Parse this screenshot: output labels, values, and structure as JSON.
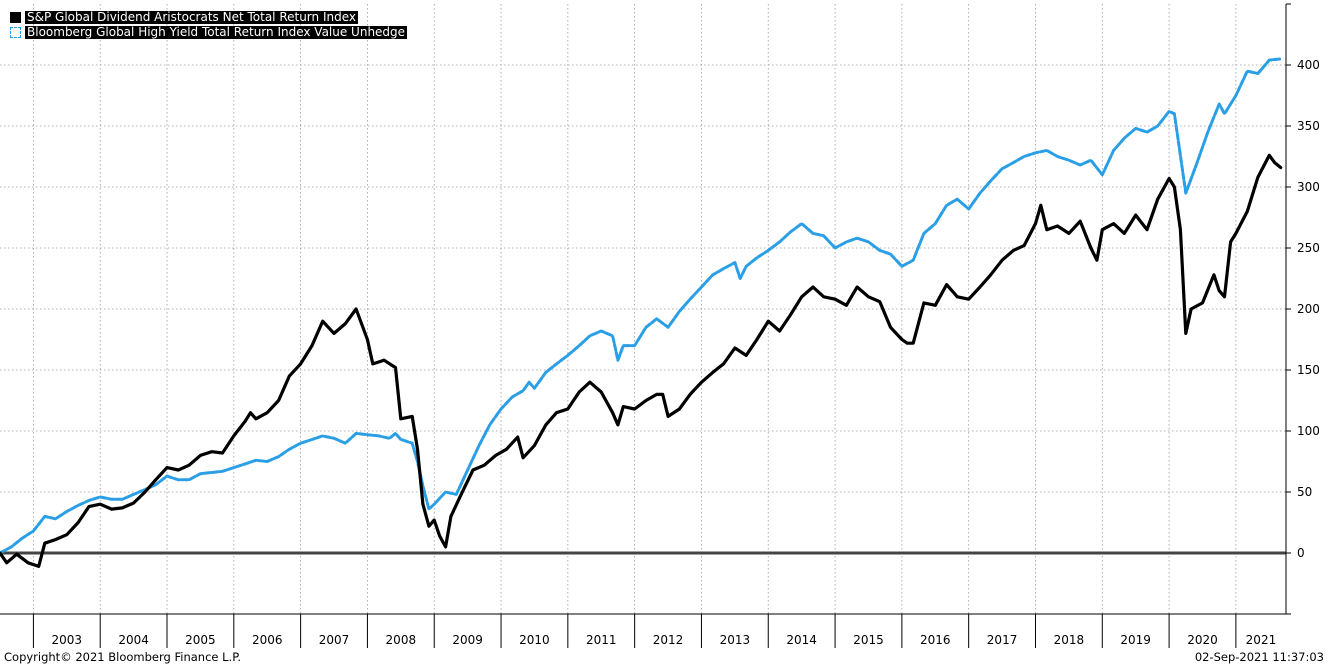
{
  "chart_data": {
    "type": "line",
    "title": "",
    "xlabel": "",
    "ylabel": "",
    "ylim": [
      -50,
      450
    ],
    "yticks": [
      0,
      50,
      100,
      150,
      200,
      250,
      300,
      350,
      400
    ],
    "xlim": [
      2002.5,
      2021.75
    ],
    "years": [
      "2003",
      "2004",
      "2005",
      "2006",
      "2007",
      "2008",
      "2009",
      "2010",
      "2011",
      "2012",
      "2013",
      "2014",
      "2015",
      "2016",
      "2017",
      "2018",
      "2019",
      "2020",
      "2021"
    ],
    "grid": true,
    "legend_position": "top-left",
    "zero_line": true,
    "series": [
      {
        "name": "S&P Global Dividend Aristocrats Net Total Return Index",
        "color": "#000000",
        "style": "solid",
        "points": [
          [
            2002.5,
            0
          ],
          [
            2002.6,
            -8
          ],
          [
            2002.75,
            -1
          ],
          [
            2002.92,
            -8
          ],
          [
            2003.08,
            -11
          ],
          [
            2003.17,
            8
          ],
          [
            2003.33,
            11
          ],
          [
            2003.5,
            15
          ],
          [
            2003.67,
            25
          ],
          [
            2003.83,
            38
          ],
          [
            2004.0,
            40
          ],
          [
            2004.17,
            36
          ],
          [
            2004.33,
            37
          ],
          [
            2004.5,
            41
          ],
          [
            2004.67,
            50
          ],
          [
            2004.83,
            60
          ],
          [
            2005.0,
            70
          ],
          [
            2005.17,
            68
          ],
          [
            2005.33,
            72
          ],
          [
            2005.5,
            80
          ],
          [
            2005.67,
            83
          ],
          [
            2005.83,
            82
          ],
          [
            2006.0,
            96
          ],
          [
            2006.17,
            108
          ],
          [
            2006.25,
            115
          ],
          [
            2006.33,
            110
          ],
          [
            2006.5,
            115
          ],
          [
            2006.67,
            125
          ],
          [
            2006.83,
            145
          ],
          [
            2007.0,
            155
          ],
          [
            2007.17,
            170
          ],
          [
            2007.33,
            190
          ],
          [
            2007.5,
            180
          ],
          [
            2007.67,
            188
          ],
          [
            2007.83,
            200
          ],
          [
            2008.0,
            175
          ],
          [
            2008.08,
            155
          ],
          [
            2008.25,
            158
          ],
          [
            2008.42,
            152
          ],
          [
            2008.5,
            110
          ],
          [
            2008.67,
            112
          ],
          [
            2008.75,
            85
          ],
          [
            2008.83,
            40
          ],
          [
            2008.92,
            22
          ],
          [
            2009.0,
            27
          ],
          [
            2009.08,
            14
          ],
          [
            2009.17,
            5
          ],
          [
            2009.25,
            30
          ],
          [
            2009.42,
            50
          ],
          [
            2009.58,
            68
          ],
          [
            2009.75,
            72
          ],
          [
            2009.92,
            80
          ],
          [
            2010.08,
            85
          ],
          [
            2010.25,
            95
          ],
          [
            2010.33,
            78
          ],
          [
            2010.5,
            88
          ],
          [
            2010.67,
            105
          ],
          [
            2010.83,
            115
          ],
          [
            2011.0,
            118
          ],
          [
            2011.17,
            132
          ],
          [
            2011.33,
            140
          ],
          [
            2011.5,
            132
          ],
          [
            2011.67,
            115
          ],
          [
            2011.75,
            105
          ],
          [
            2011.83,
            120
          ],
          [
            2012.0,
            118
          ],
          [
            2012.17,
            125
          ],
          [
            2012.33,
            130
          ],
          [
            2012.42,
            130
          ],
          [
            2012.5,
            112
          ],
          [
            2012.67,
            118
          ],
          [
            2012.83,
            130
          ],
          [
            2013.0,
            140
          ],
          [
            2013.17,
            148
          ],
          [
            2013.33,
            155
          ],
          [
            2013.5,
            168
          ],
          [
            2013.67,
            162
          ],
          [
            2013.83,
            175
          ],
          [
            2014.0,
            190
          ],
          [
            2014.17,
            182
          ],
          [
            2014.33,
            195
          ],
          [
            2014.5,
            210
          ],
          [
            2014.67,
            218
          ],
          [
            2014.83,
            210
          ],
          [
            2015.0,
            208
          ],
          [
            2015.17,
            203
          ],
          [
            2015.33,
            218
          ],
          [
            2015.5,
            210
          ],
          [
            2015.67,
            206
          ],
          [
            2015.83,
            185
          ],
          [
            2016.0,
            175
          ],
          [
            2016.08,
            172
          ],
          [
            2016.17,
            172
          ],
          [
            2016.33,
            205
          ],
          [
            2016.5,
            203
          ],
          [
            2016.67,
            220
          ],
          [
            2016.83,
            210
          ],
          [
            2017.0,
            208
          ],
          [
            2017.17,
            218
          ],
          [
            2017.33,
            228
          ],
          [
            2017.5,
            240
          ],
          [
            2017.67,
            248
          ],
          [
            2017.83,
            252
          ],
          [
            2018.0,
            270
          ],
          [
            2018.08,
            285
          ],
          [
            2018.17,
            265
          ],
          [
            2018.33,
            268
          ],
          [
            2018.5,
            262
          ],
          [
            2018.67,
            272
          ],
          [
            2018.83,
            250
          ],
          [
            2018.92,
            240
          ],
          [
            2019.0,
            265
          ],
          [
            2019.17,
            270
          ],
          [
            2019.33,
            262
          ],
          [
            2019.5,
            277
          ],
          [
            2019.67,
            265
          ],
          [
            2019.83,
            290
          ],
          [
            2020.0,
            307
          ],
          [
            2020.08,
            300
          ],
          [
            2020.17,
            265
          ],
          [
            2020.25,
            180
          ],
          [
            2020.33,
            200
          ],
          [
            2020.5,
            205
          ],
          [
            2020.67,
            228
          ],
          [
            2020.75,
            215
          ],
          [
            2020.83,
            210
          ],
          [
            2020.92,
            255
          ],
          [
            2021.0,
            262
          ],
          [
            2021.17,
            280
          ],
          [
            2021.33,
            308
          ],
          [
            2021.5,
            326
          ],
          [
            2021.58,
            320
          ],
          [
            2021.67,
            316
          ]
        ]
      },
      {
        "name": "Bloomberg Global High Yield Total Return Index Value Unhedge",
        "color": "#2a9fe5",
        "style": "dashed",
        "points": [
          [
            2002.5,
            0
          ],
          [
            2002.67,
            5
          ],
          [
            2002.83,
            12
          ],
          [
            2003.0,
            18
          ],
          [
            2003.17,
            30
          ],
          [
            2003.33,
            28
          ],
          [
            2003.5,
            34
          ],
          [
            2003.67,
            39
          ],
          [
            2003.83,
            43
          ],
          [
            2004.0,
            46
          ],
          [
            2004.17,
            44
          ],
          [
            2004.33,
            44
          ],
          [
            2004.5,
            48
          ],
          [
            2004.67,
            52
          ],
          [
            2004.83,
            56
          ],
          [
            2005.0,
            63
          ],
          [
            2005.17,
            60
          ],
          [
            2005.33,
            60
          ],
          [
            2005.5,
            65
          ],
          [
            2005.67,
            66
          ],
          [
            2005.83,
            67
          ],
          [
            2006.0,
            70
          ],
          [
            2006.17,
            73
          ],
          [
            2006.33,
            76
          ],
          [
            2006.5,
            75
          ],
          [
            2006.67,
            79
          ],
          [
            2006.83,
            85
          ],
          [
            2007.0,
            90
          ],
          [
            2007.17,
            93
          ],
          [
            2007.33,
            96
          ],
          [
            2007.5,
            94
          ],
          [
            2007.67,
            90
          ],
          [
            2007.83,
            98
          ],
          [
            2008.0,
            97
          ],
          [
            2008.17,
            96
          ],
          [
            2008.33,
            94
          ],
          [
            2008.42,
            98
          ],
          [
            2008.5,
            93
          ],
          [
            2008.67,
            90
          ],
          [
            2008.75,
            75
          ],
          [
            2008.83,
            55
          ],
          [
            2008.92,
            36
          ],
          [
            2009.0,
            40
          ],
          [
            2009.17,
            50
          ],
          [
            2009.33,
            48
          ],
          [
            2009.5,
            68
          ],
          [
            2009.67,
            88
          ],
          [
            2009.83,
            105
          ],
          [
            2010.0,
            118
          ],
          [
            2010.17,
            128
          ],
          [
            2010.33,
            133
          ],
          [
            2010.42,
            140
          ],
          [
            2010.5,
            135
          ],
          [
            2010.67,
            148
          ],
          [
            2010.83,
            155
          ],
          [
            2011.0,
            162
          ],
          [
            2011.17,
            170
          ],
          [
            2011.33,
            178
          ],
          [
            2011.5,
            182
          ],
          [
            2011.67,
            178
          ],
          [
            2011.75,
            158
          ],
          [
            2011.83,
            170
          ],
          [
            2012.0,
            170
          ],
          [
            2012.17,
            185
          ],
          [
            2012.33,
            192
          ],
          [
            2012.5,
            185
          ],
          [
            2012.67,
            198
          ],
          [
            2012.83,
            208
          ],
          [
            2013.0,
            218
          ],
          [
            2013.17,
            228
          ],
          [
            2013.33,
            233
          ],
          [
            2013.5,
            238
          ],
          [
            2013.58,
            225
          ],
          [
            2013.67,
            235
          ],
          [
            2013.83,
            242
          ],
          [
            2014.0,
            248
          ],
          [
            2014.17,
            255
          ],
          [
            2014.33,
            263
          ],
          [
            2014.5,
            270
          ],
          [
            2014.67,
            262
          ],
          [
            2014.83,
            260
          ],
          [
            2015.0,
            250
          ],
          [
            2015.17,
            255
          ],
          [
            2015.33,
            258
          ],
          [
            2015.5,
            255
          ],
          [
            2015.67,
            248
          ],
          [
            2015.83,
            245
          ],
          [
            2016.0,
            235
          ],
          [
            2016.17,
            240
          ],
          [
            2016.33,
            262
          ],
          [
            2016.5,
            270
          ],
          [
            2016.67,
            285
          ],
          [
            2016.83,
            290
          ],
          [
            2017.0,
            282
          ],
          [
            2017.17,
            295
          ],
          [
            2017.33,
            305
          ],
          [
            2017.5,
            315
          ],
          [
            2017.67,
            320
          ],
          [
            2017.83,
            325
          ],
          [
            2018.0,
            328
          ],
          [
            2018.17,
            330
          ],
          [
            2018.33,
            325
          ],
          [
            2018.5,
            322
          ],
          [
            2018.67,
            318
          ],
          [
            2018.83,
            322
          ],
          [
            2019.0,
            310
          ],
          [
            2019.17,
            330
          ],
          [
            2019.33,
            340
          ],
          [
            2019.5,
            348
          ],
          [
            2019.67,
            345
          ],
          [
            2019.83,
            350
          ],
          [
            2020.0,
            362
          ],
          [
            2020.08,
            360
          ],
          [
            2020.25,
            295
          ],
          [
            2020.42,
            320
          ],
          [
            2020.58,
            345
          ],
          [
            2020.75,
            368
          ],
          [
            2020.83,
            360
          ],
          [
            2021.0,
            375
          ],
          [
            2021.17,
            395
          ],
          [
            2021.33,
            393
          ],
          [
            2021.5,
            404
          ],
          [
            2021.67,
            405
          ]
        ]
      }
    ]
  },
  "legend": {
    "item1": "S&P Global Dividend Aristocrats Net Total Return Index",
    "item2": "Bloomberg Global High Yield Total Return Index Value Unhedge"
  },
  "footer": {
    "copyright": "Copyright© 2021 Bloomberg Finance L.P.",
    "timestamp": "02-Sep-2021 11:37:03"
  }
}
